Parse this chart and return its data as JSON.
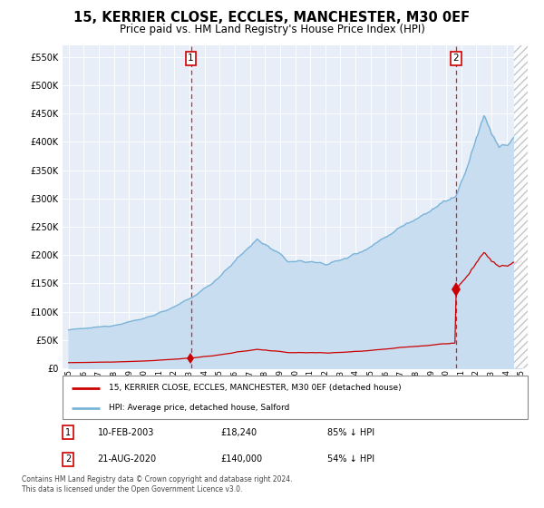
{
  "title": "15, KERRIER CLOSE, ECCLES, MANCHESTER, M30 0EF",
  "subtitle": "Price paid vs. HM Land Registry's House Price Index (HPI)",
  "title_fontsize": 10.5,
  "subtitle_fontsize": 8.5,
  "bg_white": "#ffffff",
  "plot_bg_color": "#e8eef8",
  "hpi_color": "#7ab4d8",
  "hpi_fill_color": "#c8ddf0",
  "price_color": "#cc0000",
  "grid_color": "#ffffff",
  "hatch_color": "#c0c0c0",
  "ylim": [
    0,
    570000
  ],
  "yticks": [
    0,
    50000,
    100000,
    150000,
    200000,
    250000,
    300000,
    350000,
    400000,
    450000,
    500000,
    550000
  ],
  "x_min": 1994.6,
  "x_max": 2025.4,
  "transaction1_year": 2003.1,
  "transaction1_price": 18240,
  "transaction2_year": 2020.65,
  "transaction2_price": 140000,
  "legend_label_price": "15, KERRIER CLOSE, ECCLES, MANCHESTER, M30 0EF (detached house)",
  "legend_label_hpi": "HPI: Average price, detached house, Salford",
  "note1_box": "1",
  "note1_date": "10-FEB-2003",
  "note1_price": "£18,240",
  "note1_pct": "85% ↓ HPI",
  "note2_box": "2",
  "note2_date": "21-AUG-2020",
  "note2_price": "£140,000",
  "note2_pct": "54% ↓ HPI",
  "footer_line1": "Contains HM Land Registry data © Crown copyright and database right 2024.",
  "footer_line2": "This data is licensed under the Open Government Licence v3.0."
}
